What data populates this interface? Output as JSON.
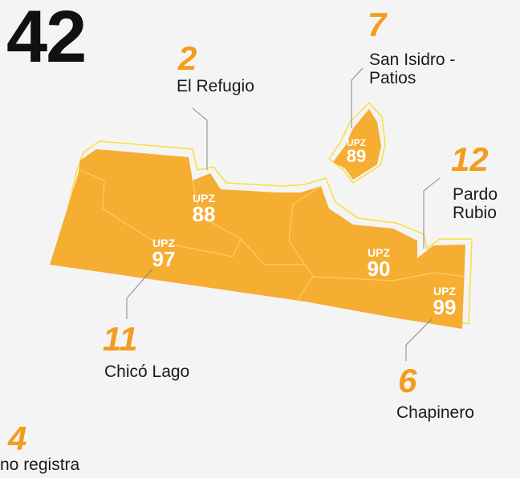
{
  "total": "42",
  "upz_label": "UPZ",
  "zones": [
    {
      "code": "88",
      "count": "2",
      "name": "El Refugio"
    },
    {
      "code": "89",
      "count": "7",
      "name": "San Isidro - Patios"
    },
    {
      "code": "97",
      "count": "11",
      "name": "Chicó Lago"
    },
    {
      "code": "90",
      "count": "12",
      "name": "Pardo Rubio"
    },
    {
      "code": "99",
      "count": "6",
      "name": "Chapinero"
    }
  ],
  "no_registra": {
    "count": "4",
    "label": "no registra"
  }
}
